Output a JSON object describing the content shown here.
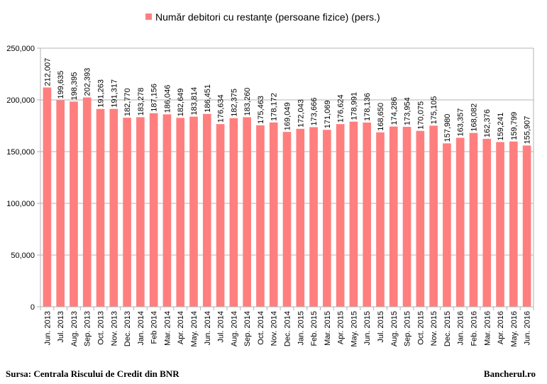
{
  "footer": {
    "source": "Sursa: Centrala Riscului de Credit din BNR",
    "brand": "Bancherul.ro"
  },
  "chart_data": {
    "type": "bar",
    "title": "",
    "xlabel": "",
    "ylabel": "",
    "ylim": [
      0,
      250000
    ],
    "yticks": [
      0,
      50000,
      100000,
      150000,
      200000,
      250000
    ],
    "ytick_labels": [
      "0",
      "50,000",
      "100,000",
      "150,000",
      "200,000",
      "250,000"
    ],
    "grid": true,
    "legend_position": "top",
    "colors": {
      "bar": "#ff7f7f",
      "grid": "#b3b3b3",
      "axis": "#b3b3b3"
    },
    "categories": [
      "Jun. 2013",
      "Jul. 2013",
      "Aug. 2013",
      "Sep. 2013",
      "Oct. 2013",
      "Nov. 2013",
      "Dec. 2013",
      "Jan. 2014",
      "Feb 2014",
      "Mar. 2014",
      "Apr. 2014",
      "May. 2014",
      "Jun. 2014",
      "Jul. 2014",
      "Aug. 2014",
      "Sep. 2014",
      "Oct. 2014",
      "Nov. 2014",
      "Dec. 2014",
      "Jan. 2015",
      "Feb. 2015",
      "Mar. 2015",
      "Apr. 2015",
      "May. 2015",
      "Jun. 2015",
      "Jul. 2015",
      "Aug. 2015",
      "Sep. 2015",
      "Oct. 2015",
      "Nov. 2015",
      "Dec. 2015",
      "Jan. 2016",
      "Feb. 2016",
      "Mar. 2016",
      "Apr. 2016",
      "May. 2016",
      "Jun. 2016"
    ],
    "series": [
      {
        "name": "Număr debitori cu restanţe (persoane fizice) (pers.)",
        "values": [
          212007,
          199635,
          198395,
          202393,
          191263,
          191317,
          182770,
          183278,
          187156,
          186046,
          182649,
          183814,
          186451,
          176634,
          182375,
          183260,
          175463,
          178172,
          169049,
          172043,
          173666,
          171069,
          176624,
          178991,
          178136,
          168650,
          174286,
          173954,
          170075,
          175105,
          157980,
          163357,
          168082,
          162376,
          159241,
          159799,
          155907
        ],
        "labels": [
          "212,007",
          "199,635",
          "198,395",
          "202,393",
          "191,263",
          "191,317",
          "182,770",
          "183,278",
          "187,156",
          "186,046",
          "182,649",
          "183,814",
          "186,451",
          "176,634",
          "182,375",
          "183,260",
          "175,463",
          "178,172",
          "169,049",
          "172,043",
          "173,666",
          "171,069",
          "176,624",
          "178,991",
          "178,136",
          "168,650",
          "174,286",
          "173,954",
          "170,075",
          "175,105",
          "157,980",
          "163,357",
          "168,082",
          "162,376",
          "159,241",
          "159,799",
          "155,907"
        ]
      }
    ]
  }
}
